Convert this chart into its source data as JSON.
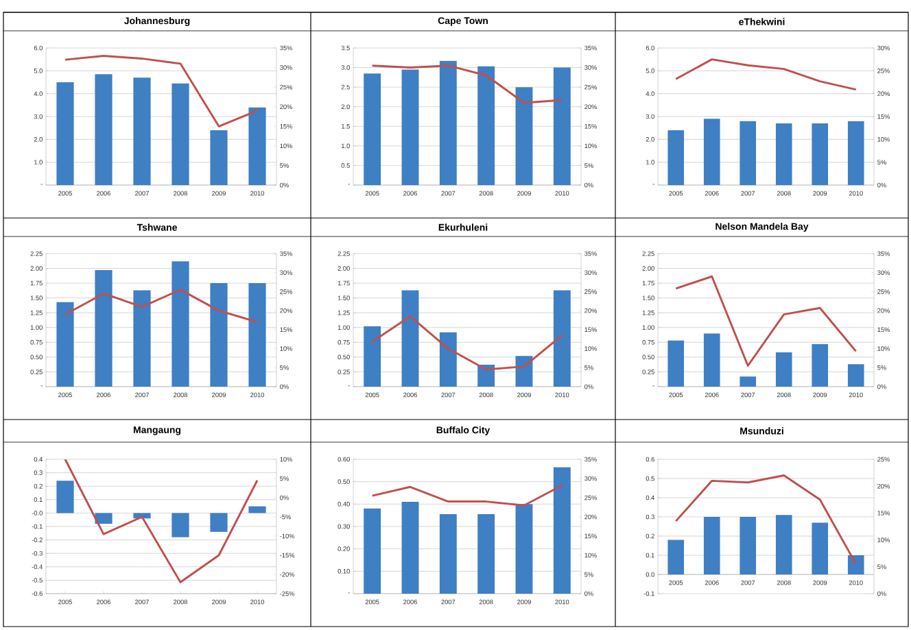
{
  "chart_data": [
    {
      "type": "bar",
      "title": "Johannesburg",
      "categories": [
        "2005",
        "2006",
        "2007",
        "2008",
        "2009",
        "2010"
      ],
      "grid": "y",
      "series": [
        {
          "color": "#3f7fc4",
          "values": [
            4.5,
            4.85,
            4.7,
            4.45,
            2.4,
            3.4
          ]
        },
        {
          "type": "line",
          "axis": "y2",
          "color": "#c0504d",
          "values": [
            32,
            33,
            32.3,
            31,
            15,
            19
          ]
        }
      ],
      "ylim": [
        0,
        6
      ],
      "yticks": [
        {
          "value": 0,
          "label": "-"
        },
        {
          "value": 1,
          "label": "1.0"
        },
        {
          "value": 2,
          "label": "2.0"
        },
        {
          "value": 3,
          "label": "3.0"
        },
        {
          "value": 4,
          "label": "4.0"
        },
        {
          "value": 5,
          "label": "5.0"
        },
        {
          "value": 6,
          "label": "6.0"
        }
      ],
      "y2lim": [
        0,
        35
      ],
      "y2ticks": [
        {
          "value": 0,
          "label": "0%"
        },
        {
          "value": 5,
          "label": "5%"
        },
        {
          "value": 10,
          "label": "10%"
        },
        {
          "value": 15,
          "label": "15%"
        },
        {
          "value": 20,
          "label": "20%"
        },
        {
          "value": 25,
          "label": "25%"
        },
        {
          "value": 30,
          "label": "30%"
        },
        {
          "value": 35,
          "label": "35%"
        }
      ]
    },
    {
      "type": "bar",
      "title": "Cape Town",
      "categories": [
        "2005",
        "2006",
        "2007",
        "2008",
        "2009",
        "2010"
      ],
      "grid": "y",
      "series": [
        {
          "color": "#3f7fc4",
          "values": [
            2.85,
            2.95,
            3.17,
            3.03,
            2.5,
            3.0
          ]
        },
        {
          "type": "line",
          "axis": "y2",
          "color": "#c0504d",
          "values": [
            30.5,
            30,
            30.5,
            28,
            21,
            21.7
          ]
        }
      ],
      "ylim": [
        0,
        3.5
      ],
      "yticks": [
        {
          "value": 0,
          "label": "-"
        },
        {
          "value": 0.5,
          "label": "0.5"
        },
        {
          "value": 1,
          "label": "1.0"
        },
        {
          "value": 1.5,
          "label": "1.5"
        },
        {
          "value": 2,
          "label": "2.0"
        },
        {
          "value": 2.5,
          "label": "2.5"
        },
        {
          "value": 3,
          "label": "3.0"
        },
        {
          "value": 3.5,
          "label": "3.5"
        }
      ],
      "y2lim": [
        0,
        35
      ],
      "y2ticks": [
        {
          "value": 0,
          "label": "0%"
        },
        {
          "value": 5,
          "label": "5%"
        },
        {
          "value": 10,
          "label": "10%"
        },
        {
          "value": 15,
          "label": "15%"
        },
        {
          "value": 20,
          "label": "20%"
        },
        {
          "value": 25,
          "label": "25%"
        },
        {
          "value": 30,
          "label": "30%"
        },
        {
          "value": 35,
          "label": "35%"
        }
      ]
    },
    {
      "type": "bar",
      "title": "eThekwini",
      "categories": [
        "2005",
        "2006",
        "2007",
        "2008",
        "2009",
        "2010"
      ],
      "grid": "y",
      "series": [
        {
          "color": "#3f7fc4",
          "values": [
            2.4,
            2.9,
            2.8,
            2.7,
            2.7,
            2.8
          ]
        },
        {
          "type": "line",
          "axis": "y2",
          "color": "#c0504d",
          "values": [
            23.2,
            27.5,
            26.2,
            25.4,
            22.7,
            20.9
          ]
        }
      ],
      "ylim": [
        0,
        6
      ],
      "yticks": [
        {
          "value": 0,
          "label": "-"
        },
        {
          "value": 1,
          "label": "1.0"
        },
        {
          "value": 2,
          "label": "2.0"
        },
        {
          "value": 3,
          "label": "3.0"
        },
        {
          "value": 4,
          "label": "4.0"
        },
        {
          "value": 5,
          "label": "5.0"
        },
        {
          "value": 6,
          "label": "6.0"
        }
      ],
      "y2lim": [
        0,
        30
      ],
      "y2ticks": [
        {
          "value": 0,
          "label": "0%"
        },
        {
          "value": 5,
          "label": "5%"
        },
        {
          "value": 10,
          "label": "10%"
        },
        {
          "value": 15,
          "label": "15%"
        },
        {
          "value": 20,
          "label": "20%"
        },
        {
          "value": 25,
          "label": "25%"
        },
        {
          "value": 30,
          "label": "30%"
        }
      ]
    },
    {
      "type": "bar",
      "title": "Tshwane",
      "categories": [
        "2005",
        "2006",
        "2007",
        "2008",
        "2009",
        "2010"
      ],
      "grid": "y",
      "series": [
        {
          "color": "#3f7fc4",
          "values": [
            1.43,
            1.97,
            1.63,
            2.12,
            1.75,
            1.75
          ]
        },
        {
          "type": "line",
          "axis": "y2",
          "color": "#c0504d",
          "values": [
            19,
            24.5,
            21,
            25.5,
            20,
            17
          ]
        }
      ],
      "ylim": [
        0,
        2.25
      ],
      "yticks": [
        {
          "value": 0,
          "label": "-"
        },
        {
          "value": 0.25,
          "label": "0.25"
        },
        {
          "value": 0.5,
          "label": "0.50"
        },
        {
          "value": 0.75,
          "label": "0.75"
        },
        {
          "value": 1,
          "label": "1.00"
        },
        {
          "value": 1.25,
          "label": "1.25"
        },
        {
          "value": 1.5,
          "label": "1.50"
        },
        {
          "value": 1.75,
          "label": "1.75"
        },
        {
          "value": 2,
          "label": "2.00"
        },
        {
          "value": 2.25,
          "label": "2.25"
        }
      ],
      "y2lim": [
        0,
        35
      ],
      "y2ticks": [
        {
          "value": 0,
          "label": "0%"
        },
        {
          "value": 5,
          "label": "5%"
        },
        {
          "value": 10,
          "label": "10%"
        },
        {
          "value": 15,
          "label": "15%"
        },
        {
          "value": 20,
          "label": "20%"
        },
        {
          "value": 25,
          "label": "25%"
        },
        {
          "value": 30,
          "label": "30%"
        },
        {
          "value": 35,
          "label": "35%"
        }
      ]
    },
    {
      "type": "bar",
      "title": "Ekurhuleni",
      "categories": [
        "2005",
        "2006",
        "2007",
        "2008",
        "2009",
        "2010"
      ],
      "grid": "y",
      "series": [
        {
          "color": "#3f7fc4",
          "values": [
            1.02,
            1.63,
            0.92,
            0.37,
            0.52,
            1.63
          ]
        },
        {
          "type": "line",
          "axis": "y2",
          "color": "#c0504d",
          "values": [
            11.8,
            18.5,
            10,
            4.5,
            5.3,
            13.5
          ]
        }
      ],
      "ylim": [
        0,
        2.25
      ],
      "yticks": [
        {
          "value": 0,
          "label": "-"
        },
        {
          "value": 0.25,
          "label": "0.25"
        },
        {
          "value": 0.5,
          "label": "0.50"
        },
        {
          "value": 0.75,
          "label": "0.75"
        },
        {
          "value": 1,
          "label": "1.00"
        },
        {
          "value": 1.25,
          "label": "1.25"
        },
        {
          "value": 1.5,
          "label": "1.50"
        },
        {
          "value": 1.75,
          "label": "1.75"
        },
        {
          "value": 2,
          "label": "2.00"
        },
        {
          "value": 2.25,
          "label": "2.25"
        }
      ],
      "y2lim": [
        0,
        35
      ],
      "y2ticks": [
        {
          "value": 0,
          "label": "0%"
        },
        {
          "value": 5,
          "label": "5%"
        },
        {
          "value": 10,
          "label": "10%"
        },
        {
          "value": 15,
          "label": "15%"
        },
        {
          "value": 20,
          "label": "20%"
        },
        {
          "value": 25,
          "label": "25%"
        },
        {
          "value": 30,
          "label": "30%"
        },
        {
          "value": 35,
          "label": "35%"
        }
      ]
    },
    {
      "type": "bar",
      "title": "Nelson Mandela Bay",
      "categories": [
        "2005",
        "2006",
        "2007",
        "2008",
        "2009",
        "2010"
      ],
      "grid": "y",
      "series": [
        {
          "color": "#3f7fc4",
          "values": [
            0.78,
            0.9,
            0.17,
            0.58,
            0.72,
            0.38
          ]
        },
        {
          "type": "line",
          "axis": "y2",
          "color": "#c0504d",
          "values": [
            25.8,
            29,
            5.5,
            19,
            20.7,
            9.3
          ]
        }
      ],
      "ylim": [
        0,
        2.25
      ],
      "yticks": [
        {
          "value": 0,
          "label": "-"
        },
        {
          "value": 0.25,
          "label": "0.25"
        },
        {
          "value": 0.5,
          "label": "0.50"
        },
        {
          "value": 0.75,
          "label": "0.75"
        },
        {
          "value": 1,
          "label": "1.00"
        },
        {
          "value": 1.25,
          "label": "1.25"
        },
        {
          "value": 1.5,
          "label": "1.50"
        },
        {
          "value": 1.75,
          "label": "1.75"
        },
        {
          "value": 2,
          "label": "2.00"
        },
        {
          "value": 2.25,
          "label": "2.25"
        }
      ],
      "y2lim": [
        0,
        35
      ],
      "y2ticks": [
        {
          "value": 0,
          "label": "0%"
        },
        {
          "value": 5,
          "label": "5%"
        },
        {
          "value": 10,
          "label": "10%"
        },
        {
          "value": 15,
          "label": "15%"
        },
        {
          "value": 20,
          "label": "20%"
        },
        {
          "value": 25,
          "label": "25%"
        },
        {
          "value": 30,
          "label": "30%"
        },
        {
          "value": 35,
          "label": "35%"
        }
      ]
    },
    {
      "type": "bar",
      "title": "Mangaung",
      "categories": [
        "2005",
        "2006",
        "2007",
        "2008",
        "2009",
        "2010"
      ],
      "grid": "y",
      "series": [
        {
          "color": "#3f7fc4",
          "values": [
            0.24,
            -0.08,
            -0.04,
            -0.18,
            -0.14,
            0.05
          ]
        },
        {
          "type": "line",
          "axis": "y2",
          "color": "#c0504d",
          "values": [
            10,
            -9.5,
            -5,
            -22,
            -15,
            4.5
          ]
        }
      ],
      "ylim": [
        -0.6,
        0.4
      ],
      "yticks": [
        {
          "value": -0.6,
          "label": "-0.6"
        },
        {
          "value": -0.5,
          "label": "-0.5"
        },
        {
          "value": -0.4,
          "label": "-0.4"
        },
        {
          "value": -0.3,
          "label": "-0.3"
        },
        {
          "value": -0.2,
          "label": "-0.2"
        },
        {
          "value": -0.1,
          "label": "-0.1"
        },
        {
          "value": 0,
          "label": "-0.0"
        },
        {
          "value": 0.1,
          "label": "0.1"
        },
        {
          "value": 0.2,
          "label": "0.2"
        },
        {
          "value": 0.3,
          "label": "0.3"
        },
        {
          "value": 0.4,
          "label": "0.4"
        }
      ],
      "y2lim": [
        -25,
        10
      ],
      "y2ticks": [
        {
          "value": -25,
          "label": "-25%"
        },
        {
          "value": -20,
          "label": "-20%"
        },
        {
          "value": -15,
          "label": "-15%"
        },
        {
          "value": -10,
          "label": "-10%"
        },
        {
          "value": -5,
          "label": "-5%"
        },
        {
          "value": 0,
          "label": "0%"
        },
        {
          "value": 5,
          "label": "5%"
        },
        {
          "value": 10,
          "label": "10%"
        }
      ]
    },
    {
      "type": "bar",
      "title": "Buffalo City",
      "categories": [
        "2005",
        "2006",
        "2007",
        "2008",
        "2009",
        "2010"
      ],
      "grid": "y",
      "series": [
        {
          "color": "#3f7fc4",
          "values": [
            0.38,
            0.41,
            0.355,
            0.355,
            0.4,
            0.565
          ]
        },
        {
          "type": "line",
          "axis": "y2",
          "color": "#c0504d",
          "values": [
            25.5,
            27.8,
            24,
            24,
            23,
            28.2
          ]
        }
      ],
      "ylim": [
        0,
        0.6
      ],
      "yticks": [
        {
          "value": 0,
          "label": "-"
        },
        {
          "value": 0.1,
          "label": "0.10"
        },
        {
          "value": 0.2,
          "label": "0.20"
        },
        {
          "value": 0.3,
          "label": "0.30"
        },
        {
          "value": 0.4,
          "label": "0.40"
        },
        {
          "value": 0.5,
          "label": "0.50"
        },
        {
          "value": 0.6,
          "label": "0.60"
        }
      ],
      "y2lim": [
        0,
        35
      ],
      "y2ticks": [
        {
          "value": 0,
          "label": "0%"
        },
        {
          "value": 5,
          "label": "5%"
        },
        {
          "value": 10,
          "label": "10%"
        },
        {
          "value": 15,
          "label": "15%"
        },
        {
          "value": 20,
          "label": "20%"
        },
        {
          "value": 25,
          "label": "25%"
        },
        {
          "value": 30,
          "label": "30%"
        },
        {
          "value": 35,
          "label": "35%"
        }
      ]
    },
    {
      "type": "bar",
      "title": "Msunduzi",
      "categories": [
        "2005",
        "2006",
        "2007",
        "2008",
        "2009",
        "2010"
      ],
      "grid": "y",
      "series": [
        {
          "color": "#3f7fc4",
          "values": [
            0.18,
            0.3,
            0.3,
            0.31,
            0.27,
            0.1
          ]
        },
        {
          "type": "line",
          "axis": "y2",
          "color": "#c0504d",
          "values": [
            13.5,
            21,
            20.7,
            22,
            17.5,
            5.5
          ]
        }
      ],
      "ylim": [
        -0.1,
        0.6
      ],
      "yticks": [
        {
          "value": -0.1,
          "label": "-0.1"
        },
        {
          "value": 0,
          "label": "0.0"
        },
        {
          "value": 0.1,
          "label": "0.1"
        },
        {
          "value": 0.2,
          "label": "0.2"
        },
        {
          "value": 0.3,
          "label": "0.3"
        },
        {
          "value": 0.4,
          "label": "0.4"
        },
        {
          "value": 0.5,
          "label": "0.5"
        },
        {
          "value": 0.6,
          "label": "0.6"
        }
      ],
      "y2lim": [
        0,
        25
      ],
      "y2ticks": [
        {
          "value": 0,
          "label": "0%"
        },
        {
          "value": 5,
          "label": "5%"
        },
        {
          "value": 10,
          "label": "10%"
        },
        {
          "value": 15,
          "label": "15%"
        },
        {
          "value": 20,
          "label": "20%"
        },
        {
          "value": 25,
          "label": "25%"
        }
      ]
    }
  ]
}
